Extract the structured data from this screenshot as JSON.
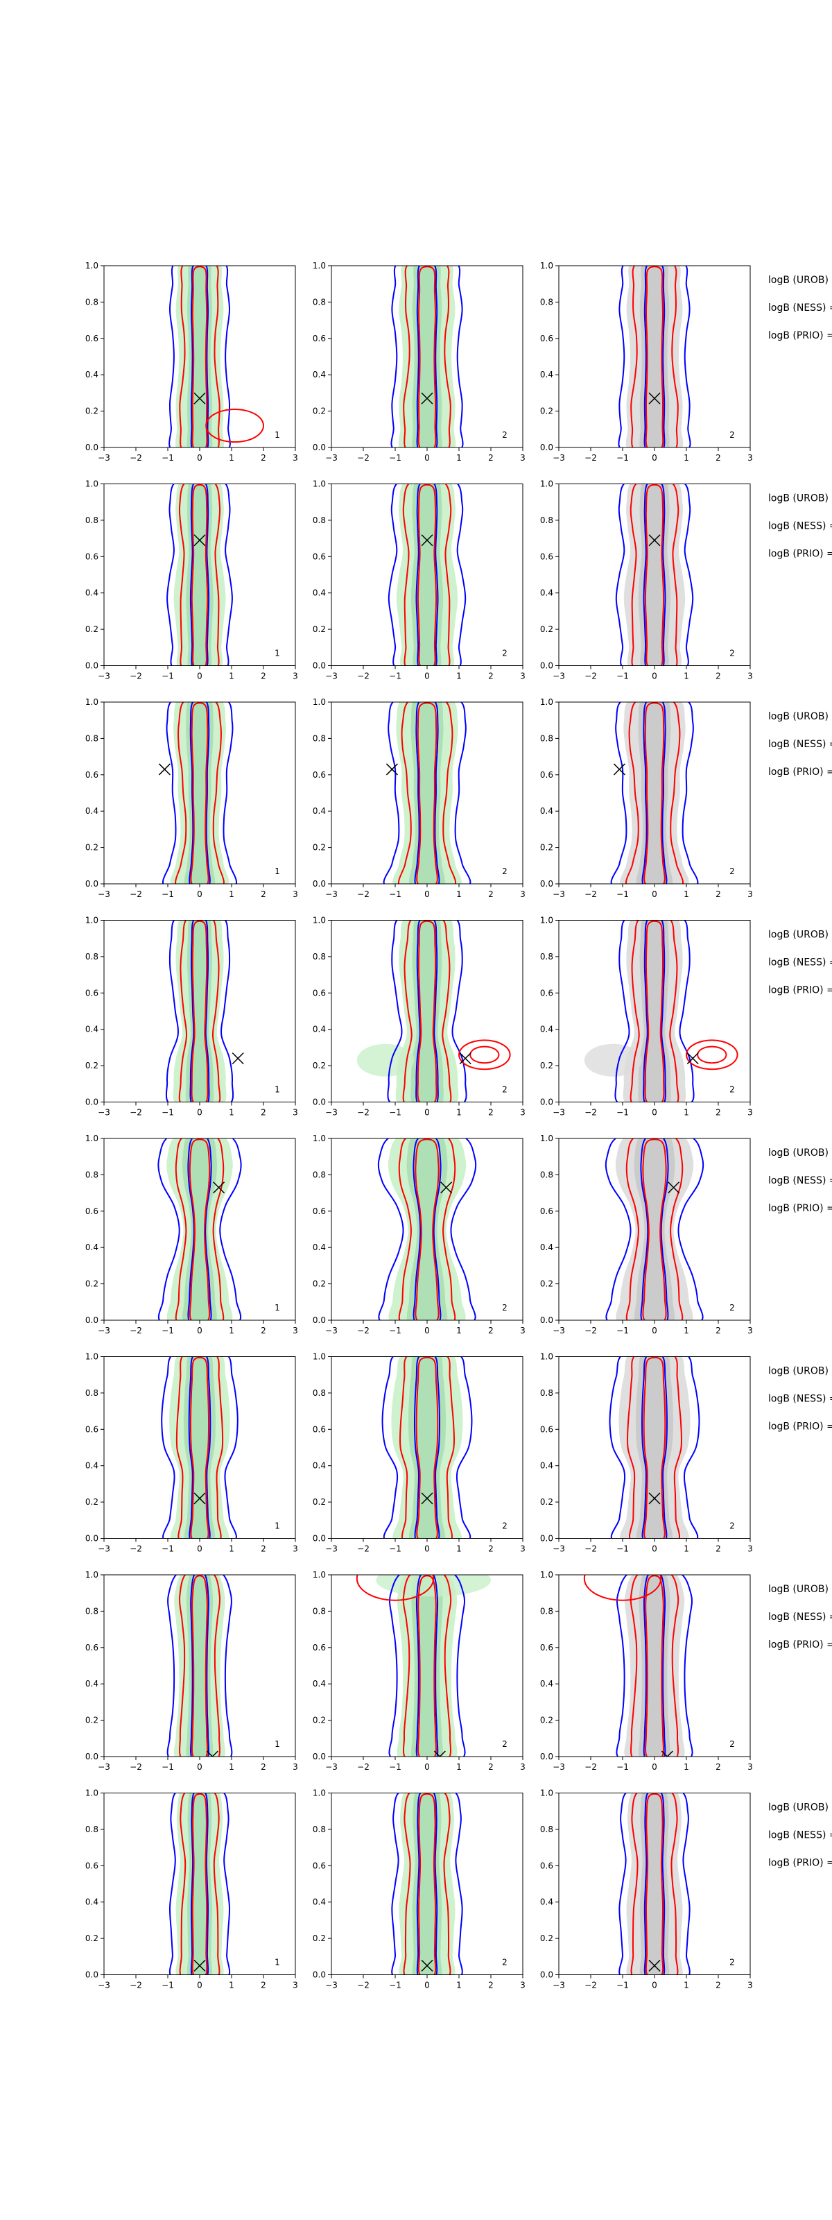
{
  "chart_data": {
    "type": "contour-grid",
    "rows": 8,
    "cols": 3,
    "xlim": [
      -3,
      3
    ],
    "ylim": [
      0,
      1
    ],
    "xticks": [
      "−3",
      "−2",
      "−1",
      "0",
      "1",
      "2",
      "3"
    ],
    "yticks": [
      "0.0",
      "0.2",
      "0.4",
      "0.6",
      "0.8",
      "1.0"
    ],
    "colors": {
      "blue_contour": "#0000ff",
      "red_contour": "#ff0000",
      "green_fill": "#c9efc9",
      "gray_fill": "#dcdcdc",
      "marker": "#000000"
    },
    "panel_labels_by_col": [
      "1",
      "2",
      "2"
    ],
    "logb_labels": [
      "logB (UROB) =",
      "logB (NESS) =",
      "logB (PRIO) ="
    ],
    "markers": [
      {
        "x": 0.0,
        "y": 0.27
      },
      {
        "x": 0.0,
        "y": 0.69
      },
      {
        "x": -1.1,
        "y": 0.63
      },
      {
        "x": 1.2,
        "y": 0.24
      },
      {
        "x": 0.6,
        "y": 0.73
      },
      {
        "x": 0.0,
        "y": 0.22
      },
      {
        "x": 0.4,
        "y": 0.0
      },
      {
        "x": 0.0,
        "y": 0.05
      }
    ]
  }
}
